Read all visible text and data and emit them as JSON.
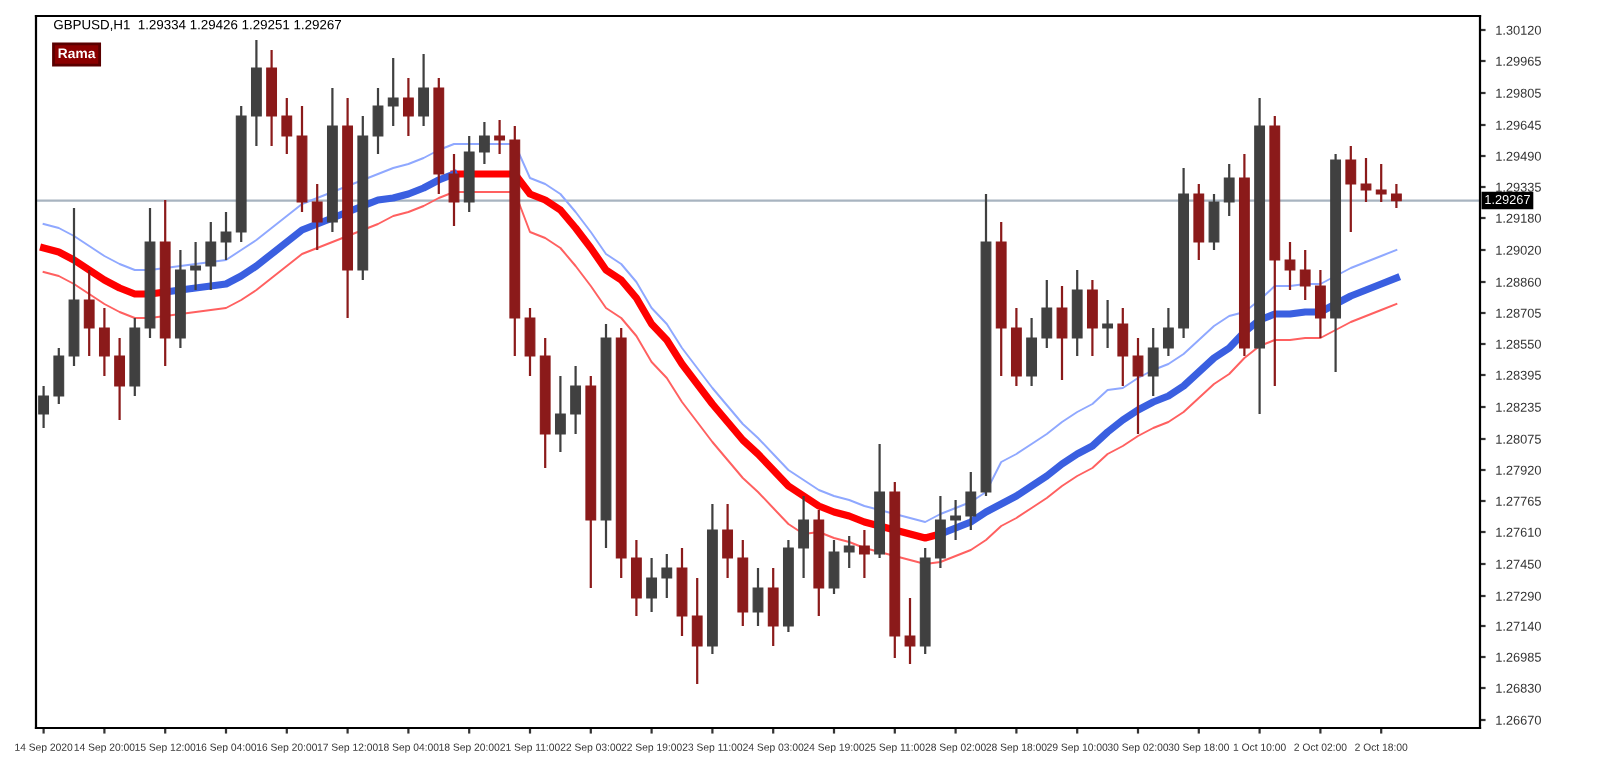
{
  "chart_data": {
    "type": "candlestick",
    "title": "GBPUSD,H1  1.29334 1.29426 1.29251 1.29267",
    "annotations": [
      "Rama"
    ],
    "categories": [
      "14 Sep 2020",
      null,
      null,
      null,
      "14 Sep 20:00",
      null,
      null,
      null,
      "15 Sep 12:00",
      null,
      null,
      null,
      "16 Sep 04:00",
      null,
      null,
      null,
      "16 Sep 20:00",
      null,
      null,
      null,
      "17 Sep 12:00",
      null,
      null,
      null,
      "18 Sep 04:00",
      null,
      null,
      null,
      "18 Sep 20:00",
      null,
      null,
      null,
      "21 Sep 11:00",
      null,
      null,
      null,
      "22 Sep 03:00",
      null,
      null,
      null,
      "22 Sep 19:00",
      null,
      null,
      null,
      "23 Sep 11:00",
      null,
      null,
      null,
      "24 Sep 03:00",
      null,
      null,
      null,
      "24 Sep 19:00",
      null,
      null,
      null,
      "25 Sep 11:00",
      null,
      null,
      null,
      "28 Sep 02:00",
      null,
      null,
      null,
      "28 Sep 18:00",
      null,
      null,
      null,
      "29 Sep 10:00",
      null,
      null,
      null,
      "30 Sep 02:00",
      null,
      null,
      null,
      "30 Sep 18:00",
      null,
      null,
      null,
      "1 Oct 10:00",
      null,
      null,
      null,
      "2 Oct 02:00",
      null,
      null,
      null,
      "2 Oct 18:00",
      null
    ],
    "ohlc": [
      [
        1.282,
        1.2834,
        1.2813,
        1.2829
      ],
      [
        1.2829,
        1.2853,
        1.2825,
        1.2849
      ],
      [
        1.2849,
        1.2923,
        1.2844,
        1.2877
      ],
      [
        1.2877,
        1.2892,
        1.2849,
        1.2863
      ],
      [
        1.2863,
        1.2873,
        1.2839,
        1.2849
      ],
      [
        1.2849,
        1.2858,
        1.2817,
        1.2834
      ],
      [
        1.2834,
        1.2868,
        1.2829,
        1.2863
      ],
      [
        1.2863,
        1.2923,
        1.2858,
        1.2906
      ],
      [
        1.2906,
        1.2927,
        1.2844,
        1.2858
      ],
      [
        1.2858,
        1.2902,
        1.2853,
        1.2892
      ],
      [
        1.2892,
        1.2906,
        1.2882,
        1.2894
      ],
      [
        1.2894,
        1.2916,
        1.2882,
        1.2906
      ],
      [
        1.2906,
        1.2921,
        1.2897,
        1.2911
      ],
      [
        1.2911,
        1.2974,
        1.2906,
        1.2969
      ],
      [
        1.2969,
        1.3007,
        1.2954,
        1.2993
      ],
      [
        1.2993,
        1.3002,
        1.2954,
        1.2969
      ],
      [
        1.2969,
        1.2978,
        1.295,
        1.2959
      ],
      [
        1.2959,
        1.2974,
        1.2921,
        1.2926
      ],
      [
        1.2926,
        1.2935,
        1.2902,
        1.2916
      ],
      [
        1.2916,
        1.2983,
        1.2911,
        1.2964
      ],
      [
        1.2964,
        1.2978,
        1.2868,
        1.2892
      ],
      [
        1.2892,
        1.2969,
        1.2887,
        1.2959
      ],
      [
        1.2959,
        1.2983,
        1.295,
        1.2974
      ],
      [
        1.2974,
        1.2998,
        1.2964,
        1.2978
      ],
      [
        1.2978,
        1.2988,
        1.2959,
        1.2969
      ],
      [
        1.2969,
        1.3,
        1.2964,
        1.2983
      ],
      [
        1.2983,
        1.2988,
        1.293,
        1.294
      ],
      [
        1.294,
        1.295,
        1.2914,
        1.2926
      ],
      [
        1.2926,
        1.2959,
        1.2921,
        1.2951
      ],
      [
        1.2951,
        1.2966,
        1.2945,
        1.2959
      ],
      [
        1.2959,
        1.2967,
        1.295,
        1.2957
      ],
      [
        1.2957,
        1.2964,
        1.2849,
        1.2868
      ],
      [
        1.2868,
        1.2873,
        1.2839,
        1.2849
      ],
      [
        1.2849,
        1.2858,
        1.2793,
        1.281
      ],
      [
        1.281,
        1.2839,
        1.2801,
        1.282
      ],
      [
        1.282,
        1.2844,
        1.281,
        1.2834
      ],
      [
        1.2834,
        1.2839,
        1.2733,
        1.2767
      ],
      [
        1.2767,
        1.2865,
        1.2753,
        1.2858
      ],
      [
        1.2858,
        1.2863,
        1.2738,
        1.2748
      ],
      [
        1.2748,
        1.2757,
        1.2719,
        1.2728
      ],
      [
        1.2728,
        1.2748,
        1.2721,
        1.2738
      ],
      [
        1.2738,
        1.275,
        1.2728,
        1.2743
      ],
      [
        1.2743,
        1.2753,
        1.2709,
        1.2719
      ],
      [
        1.2719,
        1.2738,
        1.2685,
        1.2704
      ],
      [
        1.2704,
        1.2775,
        1.27,
        1.2762
      ],
      [
        1.2762,
        1.2775,
        1.2738,
        1.2748
      ],
      [
        1.2748,
        1.2757,
        1.2714,
        1.2721
      ],
      [
        1.2721,
        1.2743,
        1.2714,
        1.2733
      ],
      [
        1.2733,
        1.2743,
        1.2704,
        1.2714
      ],
      [
        1.2714,
        1.2757,
        1.2711,
        1.2753
      ],
      [
        1.2753,
        1.2779,
        1.2738,
        1.2767
      ],
      [
        1.2767,
        1.2772,
        1.2719,
        1.2733
      ],
      [
        1.2733,
        1.2757,
        1.273,
        1.2751
      ],
      [
        1.2751,
        1.2759,
        1.2743,
        1.2754
      ],
      [
        1.2754,
        1.2762,
        1.2738,
        1.275
      ],
      [
        1.275,
        1.2805,
        1.2748,
        1.2781
      ],
      [
        1.2781,
        1.2786,
        1.2698,
        1.2709
      ],
      [
        1.2709,
        1.2728,
        1.2695,
        1.2704
      ],
      [
        1.2704,
        1.2753,
        1.27,
        1.2748
      ],
      [
        1.2748,
        1.2779,
        1.2743,
        1.2767
      ],
      [
        1.2767,
        1.2777,
        1.2757,
        1.2769
      ],
      [
        1.2769,
        1.2791,
        1.2762,
        1.2781
      ],
      [
        1.2781,
        1.293,
        1.2779,
        1.2906
      ],
      [
        1.2906,
        1.2916,
        1.2839,
        1.2863
      ],
      [
        1.2863,
        1.2873,
        1.2834,
        1.2839
      ],
      [
        1.2839,
        1.2868,
        1.2834,
        1.2858
      ],
      [
        1.2858,
        1.2887,
        1.2853,
        1.2873
      ],
      [
        1.2873,
        1.2884,
        1.2837,
        1.2858
      ],
      [
        1.2858,
        1.2892,
        1.2849,
        1.2882
      ],
      [
        1.2882,
        1.2887,
        1.2849,
        1.2863
      ],
      [
        1.2863,
        1.2877,
        1.2853,
        1.2865
      ],
      [
        1.2865,
        1.2873,
        1.2834,
        1.2849
      ],
      [
        1.2849,
        1.2858,
        1.281,
        1.2839
      ],
      [
        1.2839,
        1.2863,
        1.2829,
        1.2853
      ],
      [
        1.2853,
        1.2873,
        1.2849,
        1.2863
      ],
      [
        1.2863,
        1.2943,
        1.2858,
        1.293
      ],
      [
        1.293,
        1.2935,
        1.2897,
        1.2906
      ],
      [
        1.2906,
        1.293,
        1.2902,
        1.2926
      ],
      [
        1.2926,
        1.2945,
        1.2919,
        1.2938
      ],
      [
        1.2938,
        1.295,
        1.2849,
        1.2853
      ],
      [
        1.2853,
        1.2978,
        1.282,
        1.2964
      ],
      [
        1.2964,
        1.2969,
        1.2834,
        1.2897
      ],
      [
        1.2897,
        1.2906,
        1.2882,
        1.2892
      ],
      [
        1.2892,
        1.2902,
        1.2877,
        1.2884
      ],
      [
        1.2884,
        1.2892,
        1.2858,
        1.2868
      ],
      [
        1.2868,
        1.295,
        1.2841,
        1.2947
      ],
      [
        1.2947,
        1.2954,
        1.2911,
        1.2935
      ],
      [
        1.2935,
        1.2948,
        1.2926,
        1.2932
      ],
      [
        1.2932,
        1.2945,
        1.2926,
        1.293
      ],
      [
        1.293,
        1.2935,
        1.2923,
        1.29267
      ]
    ],
    "colors": [
      "#404040",
      "#404040",
      "#404040",
      "#8b1a1a",
      "#8b1a1a",
      "#8b1a1a",
      "#404040",
      "#404040",
      "#8b1a1a",
      "#404040",
      "#404040",
      "#404040",
      "#404040",
      "#404040",
      "#404040",
      "#8b1a1a",
      "#8b1a1a",
      "#8b1a1a",
      "#8b1a1a",
      "#404040",
      "#8b1a1a",
      "#404040",
      "#404040",
      "#404040",
      "#8b1a1a",
      "#404040",
      "#8b1a1a",
      "#8b1a1a",
      "#404040",
      "#404040",
      "#8b1a1a",
      "#8b1a1a",
      "#8b1a1a",
      "#8b1a1a",
      "#404040",
      "#404040",
      "#8b1a1a",
      "#404040",
      "#8b1a1a",
      "#8b1a1a",
      "#404040",
      "#404040",
      "#8b1a1a",
      "#8b1a1a",
      "#404040",
      "#8b1a1a",
      "#8b1a1a",
      "#404040",
      "#8b1a1a",
      "#404040",
      "#404040",
      "#8b1a1a",
      "#404040",
      "#404040",
      "#8b1a1a",
      "#404040",
      "#8b1a1a",
      "#8b1a1a",
      "#404040",
      "#404040",
      "#404040",
      "#404040",
      "#404040",
      "#8b1a1a",
      "#8b1a1a",
      "#404040",
      "#404040",
      "#8b1a1a",
      "#404040",
      "#8b1a1a",
      "#404040",
      "#8b1a1a",
      "#8b1a1a",
      "#404040",
      "#404040",
      "#404040",
      "#8b1a1a",
      "#404040",
      "#404040",
      "#8b1a1a",
      "#404040",
      "#8b1a1a",
      "#8b1a1a",
      "#8b1a1a",
      "#8b1a1a",
      "#404040",
      "#8b1a1a",
      "#8b1a1a",
      "#8b1a1a",
      "#8b1a1a"
    ],
    "series": [
      {
        "type": "line",
        "color": "#8fa8ff",
        "values": [
          1.2915,
          1.2913,
          1.2909,
          1.2904,
          1.2899,
          1.2895,
          1.2892,
          1.2892,
          1.2893,
          1.2894,
          1.2895,
          1.2896,
          1.2897,
          1.2902,
          1.2907,
          1.2913,
          1.2919,
          1.2925,
          1.2928,
          1.2931,
          1.2934,
          1.2937,
          1.294,
          1.2943,
          1.2945,
          1.2948,
          1.2952,
          1.2955,
          1.2955,
          1.2955,
          1.2955,
          1.2955,
          1.2938,
          1.2935,
          1.293,
          1.2921,
          1.2911,
          1.29,
          1.2895,
          1.2886,
          1.2873,
          1.2865,
          1.2853,
          1.2843,
          1.2833,
          1.2824,
          1.2815,
          1.2808,
          1.28,
          1.2792,
          1.2787,
          1.2782,
          1.2779,
          1.2777,
          1.2774,
          1.2772,
          1.277,
          1.2768,
          1.2766,
          1.277,
          1.2773,
          1.2776,
          1.2781,
          1.2796,
          1.28,
          1.2805,
          1.281,
          1.2816,
          1.2821,
          1.2825,
          1.2832,
          1.2833,
          1.2838,
          1.2842,
          1.2845,
          1.285,
          1.2857,
          1.2864,
          1.2869,
          1.2871,
          1.2877,
          1.2884,
          1.2884,
          1.2885,
          1.2885,
          1.2889,
          1.2893,
          1.2896,
          1.2899,
          1.2902
        ]
      },
      {
        "type": "line",
        "color": "#ff6060",
        "values": [
          1.2891,
          1.2889,
          1.2885,
          1.288,
          1.2875,
          1.2871,
          1.2868,
          1.2868,
          1.2869,
          1.287,
          1.2871,
          1.2872,
          1.2873,
          1.2877,
          1.2882,
          1.2888,
          1.2894,
          1.29,
          1.2903,
          1.2906,
          1.2909,
          1.2912,
          1.2915,
          1.2919,
          1.2921,
          1.2924,
          1.2928,
          1.2931,
          1.2931,
          1.2931,
          1.2931,
          1.2931,
          1.2911,
          1.2908,
          1.2903,
          1.2894,
          1.2884,
          1.2873,
          1.2868,
          1.2859,
          1.2846,
          1.2838,
          1.2826,
          1.2816,
          1.2806,
          1.2797,
          1.2788,
          1.2781,
          1.2773,
          1.2765,
          1.276,
          1.2761,
          1.2758,
          1.2756,
          1.2753,
          1.2751,
          1.2749,
          1.2747,
          1.2745,
          1.2746,
          1.2749,
          1.2752,
          1.2757,
          1.2764,
          1.2768,
          1.2773,
          1.2778,
          1.2784,
          1.2789,
          1.2793,
          1.28,
          1.2804,
          1.2809,
          1.2813,
          1.2816,
          1.2821,
          1.2828,
          1.2835,
          1.284,
          1.2848,
          1.2854,
          1.2857,
          1.2857,
          1.2858,
          1.2858,
          1.2862,
          1.2866,
          1.2869,
          1.2872,
          1.2875
        ]
      },
      {
        "type": "line",
        "color": "#ff0000",
        "values": [
          1.2903,
          1.2901,
          1.2897,
          1.2892,
          1.2887,
          1.2883,
          1.288,
          1.288,
          1.2881,
          null,
          null,
          null,
          null,
          null,
          null,
          null,
          null,
          null,
          null,
          null,
          null,
          null,
          null,
          null,
          null,
          null,
          null,
          1.294,
          1.294,
          1.294,
          1.294,
          1.294,
          1.293,
          1.2927,
          1.2922,
          1.2913,
          1.2903,
          1.2892,
          1.2887,
          1.2878,
          1.2865,
          1.2857,
          1.2845,
          1.2835,
          1.2825,
          1.2816,
          1.2807,
          1.28,
          1.2792,
          1.2784,
          1.2779,
          1.2774,
          1.2771,
          1.2769,
          1.2766,
          1.2764,
          1.2762,
          1.276,
          1.2758,
          1.276,
          null,
          null,
          null,
          null,
          null,
          null,
          null,
          null,
          null,
          null,
          null,
          null,
          null,
          null,
          null,
          null,
          null,
          null,
          null,
          null,
          null,
          null,
          null,
          null,
          null,
          null,
          null,
          null,
          null,
          null
        ]
      },
      {
        "type": "line",
        "color": "#3a5fe0",
        "values": [
          null,
          null,
          null,
          null,
          null,
          null,
          null,
          null,
          1.2881,
          1.2882,
          1.2883,
          1.2884,
          1.2885,
          1.2889,
          1.2894,
          1.29,
          1.2906,
          1.2912,
          1.2915,
          1.2918,
          1.2921,
          1.2924,
          1.2927,
          1.2928,
          1.293,
          1.2933,
          1.2937,
          1.294,
          null,
          null,
          null,
          null,
          null,
          null,
          null,
          null,
          null,
          null,
          null,
          null,
          null,
          null,
          null,
          null,
          null,
          null,
          null,
          null,
          null,
          null,
          null,
          null,
          null,
          null,
          null,
          null,
          null,
          null,
          null,
          1.276,
          1.2763,
          1.2766,
          1.2771,
          1.2775,
          1.2779,
          1.2784,
          1.2789,
          1.2795,
          1.28,
          1.2804,
          1.2811,
          1.2817,
          1.2822,
          1.2826,
          1.2829,
          1.2834,
          1.2841,
          1.2848,
          1.2853,
          1.2861,
          1.2867,
          1.287,
          1.287,
          1.2871,
          1.2871,
          1.2875,
          1.2879,
          1.2882,
          1.2885,
          1.2888
        ]
      }
    ],
    "ylim": [
      1.2663,
      1.3019
    ],
    "yticks": [
      {
        "value": 1.3012,
        "label": "1.30120"
      },
      1.29965,
      1.29805,
      1.29645,
      {
        "value": 1.2949,
        "label": "1.29490"
      },
      1.29335,
      {
        "value": 1.2918,
        "label": "1.29180"
      },
      {
        "value": 1.2902,
        "label": "1.29020"
      },
      {
        "value": 1.2886,
        "label": "1.28860"
      },
      1.28705,
      {
        "value": 1.2855,
        "label": "1.28550"
      },
      1.28395,
      1.28235,
      1.28075,
      {
        "value": 1.2792,
        "label": "1.27920"
      },
      1.27765,
      {
        "value": 1.2761,
        "label": "1.27610"
      },
      {
        "value": 1.2745,
        "label": "1.27450"
      },
      {
        "value": 1.2729,
        "label": "1.27290"
      },
      {
        "value": 1.2714,
        "label": "1.27140"
      },
      1.26985,
      {
        "value": 1.2683,
        "label": "1.26830"
      },
      {
        "value": 1.2667,
        "label": "1.26670"
      }
    ],
    "ref_lines": [
      {
        "axis": "y",
        "value": 1.29267,
        "label": "1.29267",
        "color": "#a8b4c0"
      }
    ],
    "grid": false,
    "legend": false
  }
}
